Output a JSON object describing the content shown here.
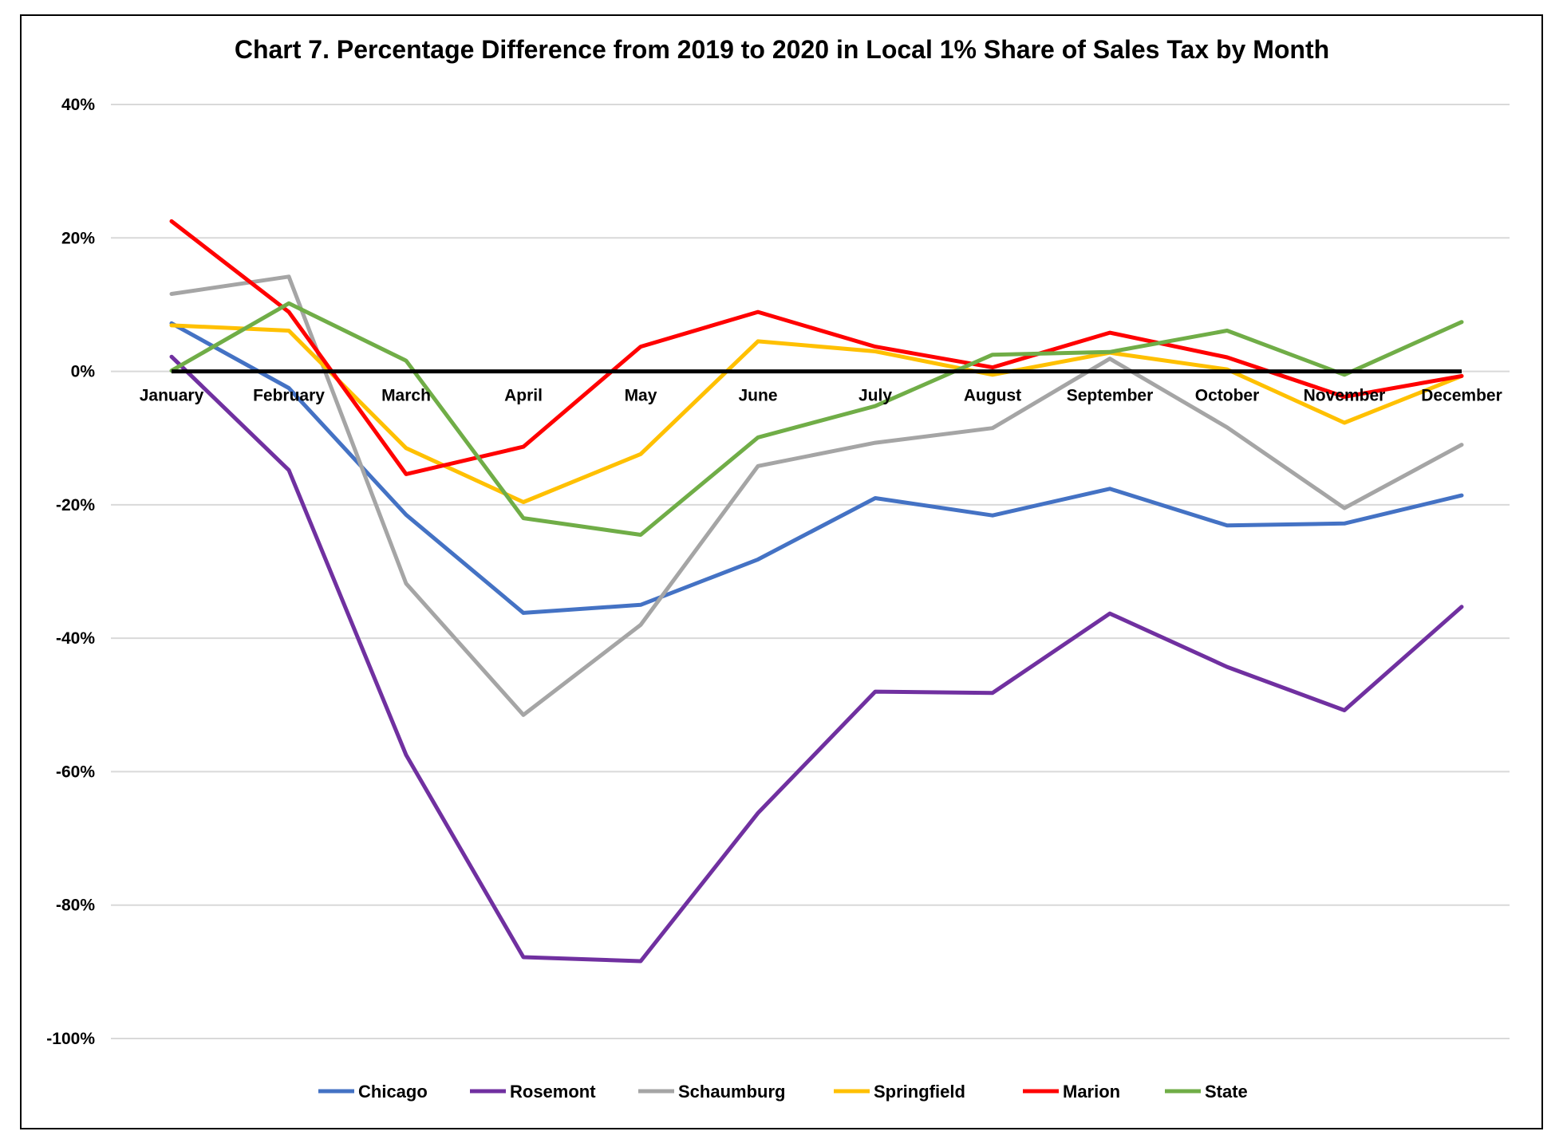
{
  "chart_data": {
    "type": "line",
    "title": "Chart 7. Percentage Difference from 2019 to 2020 in Local 1% Share of Sales Tax by Month",
    "xlabel": "",
    "ylabel": "",
    "categories": [
      "January",
      "February",
      "March",
      "April",
      "May",
      "June",
      "July",
      "August",
      "September",
      "October",
      "November",
      "December"
    ],
    "ylim": [
      -100,
      40
    ],
    "yticks": [
      40,
      20,
      0,
      -20,
      -40,
      -60,
      -80,
      -100
    ],
    "ytick_labels": [
      "40%",
      "20%",
      "0%",
      "-20%",
      "-40%",
      "-60%",
      "-80%",
      "-100%"
    ],
    "grid": true,
    "zero_line": true,
    "legend_position": "bottom",
    "series": [
      {
        "name": "Chicago",
        "color": "#4472C4",
        "values": [
          7.2,
          -2.5,
          -21.5,
          -36.2,
          -35.0,
          -28.2,
          -19.0,
          -21.6,
          -17.6,
          -23.1,
          -22.8,
          -18.6
        ]
      },
      {
        "name": "Rosemont",
        "color": "#7030A0",
        "values": [
          2.2,
          -14.8,
          -57.5,
          -87.8,
          -88.4,
          -66.2,
          -48.0,
          -48.2,
          -36.3,
          -44.3,
          -50.8,
          -35.3
        ]
      },
      {
        "name": "Schaumburg",
        "color": "#A5A5A5",
        "values": [
          11.6,
          14.2,
          -31.8,
          -51.5,
          -38.0,
          -14.2,
          -10.7,
          -8.5,
          1.9,
          -8.4,
          -20.5,
          -11.0
        ]
      },
      {
        "name": "Springfield",
        "color": "#FFC000",
        "values": [
          6.9,
          6.1,
          -11.5,
          -19.6,
          -12.4,
          4.5,
          3.0,
          -0.5,
          2.8,
          0.3,
          -7.7,
          -0.7
        ]
      },
      {
        "name": "Marion",
        "color": "#FF0000",
        "values": [
          22.5,
          8.9,
          -15.4,
          -11.3,
          3.7,
          8.9,
          3.7,
          0.6,
          5.8,
          2.1,
          -3.8,
          -0.7
        ]
      },
      {
        "name": "State",
        "color": "#70AD47",
        "values": [
          0.1,
          10.2,
          1.6,
          -22.0,
          -24.5,
          -9.9,
          -5.2,
          2.5,
          2.9,
          6.1,
          -0.5,
          7.4
        ]
      }
    ]
  }
}
